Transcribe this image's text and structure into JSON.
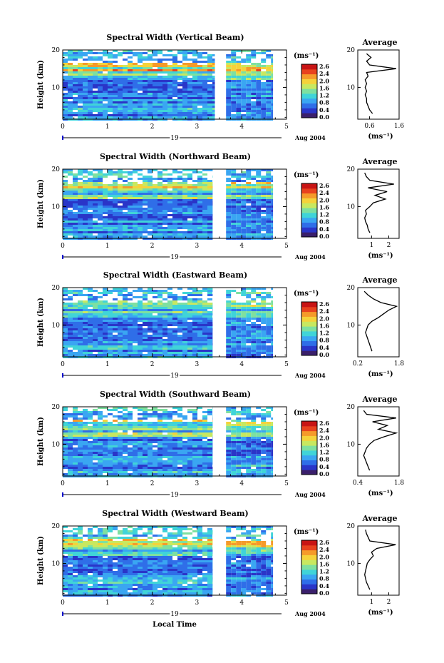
{
  "figure": {
    "xlabel": "Local Time",
    "date_left": "19",
    "date_right": "Aug 2004",
    "ylabel": "Height (km)",
    "unit": "(ms⁻¹)",
    "avg_title": "Average"
  },
  "colorbar": {
    "ticks": [
      "2.6",
      "2.4",
      "2.0",
      "1.6",
      "1.2",
      "0.8",
      "0.4",
      "0.0"
    ],
    "colors": [
      "#3a1f6b",
      "#2a35c8",
      "#2f6ee8",
      "#3aa6f2",
      "#40d4d8",
      "#7ee0a0",
      "#c8e860",
      "#f5d23a",
      "#f59a2a",
      "#e8421e",
      "#c81414"
    ]
  },
  "chart_data": [
    {
      "type": "heatmap",
      "title": "Spectral Width (Vertical Beam)",
      "xlabel": "Local Time",
      "ylabel": "Height (km)",
      "xlim": [
        0,
        5
      ],
      "ylim": [
        1.5,
        20
      ],
      "xticks": [
        0,
        1,
        2,
        3,
        4,
        5
      ],
      "yticks": [
        10,
        20
      ],
      "gap": [
        3.4,
        3.65
      ],
      "data_end": [
        3.4,
        4.7
      ],
      "avg": {
        "title": "Average",
        "xlabel": "(ms⁻¹)",
        "xlim": [
          0.2,
          1.6
        ],
        "xticks": [
          "0.6",
          "1.6"
        ],
        "heights": [
          3,
          4,
          5,
          6,
          7,
          8,
          9,
          10,
          11,
          12,
          13,
          14,
          15,
          16,
          17,
          18,
          19
        ],
        "values": [
          0.7,
          0.6,
          0.55,
          0.5,
          0.5,
          0.45,
          0.5,
          0.45,
          0.5,
          0.45,
          0.55,
          0.5,
          1.5,
          0.6,
          0.5,
          0.65,
          0.5
        ]
      }
    },
    {
      "type": "heatmap",
      "title": "Spectral Width (Northward Beam)",
      "xlabel": "Local Time",
      "ylabel": "Height (km)",
      "xlim": [
        0,
        5
      ],
      "ylim": [
        1.5,
        20
      ],
      "xticks": [
        0,
        1,
        2,
        3,
        4,
        5
      ],
      "yticks": [
        10,
        20
      ],
      "gap": [
        3.35,
        3.65
      ],
      "data_end": [
        3.35,
        4.7
      ],
      "avg": {
        "title": "Average",
        "xlabel": "(ms⁻¹)",
        "xlim": [
          0.2,
          2.6
        ],
        "xticks": [
          "1",
          "2"
        ],
        "heights": [
          3,
          4,
          5,
          6,
          7,
          8,
          9,
          10,
          11,
          12,
          13,
          14,
          15,
          16,
          17,
          18,
          19
        ],
        "values": [
          0.9,
          0.8,
          0.75,
          0.65,
          0.6,
          0.7,
          0.65,
          0.9,
          1.1,
          1.8,
          1.2,
          1.9,
          0.8,
          2.3,
          0.9,
          0.7,
          0.6
        ]
      }
    },
    {
      "type": "heatmap",
      "title": "Spectral Width (Eastward Beam)",
      "xlabel": "Local Time",
      "ylabel": "Height (km)",
      "xlim": [
        0,
        5
      ],
      "ylim": [
        1.5,
        20
      ],
      "xticks": [
        0,
        1,
        2,
        3,
        4,
        5
      ],
      "yticks": [
        10,
        20
      ],
      "gap": [
        3.35,
        3.65
      ],
      "data_end": [
        3.35,
        4.7
      ],
      "avg": {
        "title": "Average",
        "xlabel": "(ms⁻¹)",
        "xlim": [
          0.2,
          1.8
        ],
        "xticks": [
          "0.2",
          "1.8"
        ],
        "heights": [
          3,
          4,
          5,
          6,
          7,
          8,
          9,
          10,
          11,
          12,
          13,
          14,
          15,
          16,
          17,
          18,
          19
        ],
        "values": [
          0.75,
          0.7,
          0.65,
          0.6,
          0.55,
          0.5,
          0.55,
          0.6,
          0.75,
          1.0,
          1.2,
          1.4,
          1.7,
          1.1,
          0.8,
          0.6,
          0.45
        ]
      }
    },
    {
      "type": "heatmap",
      "title": "Spectral Width (Southward Beam)",
      "xlabel": "Local Time",
      "ylabel": "Height (km)",
      "xlim": [
        0,
        5
      ],
      "ylim": [
        1.5,
        20
      ],
      "xticks": [
        0,
        1,
        2,
        3,
        4,
        5
      ],
      "yticks": [
        10,
        20
      ],
      "gap": [
        3.35,
        3.65
      ],
      "data_end": [
        3.35,
        4.7
      ],
      "avg": {
        "title": "Average",
        "xlabel": "(ms⁻¹)",
        "xlim": [
          0.4,
          1.8
        ],
        "xticks": [
          "0.4",
          "1.8"
        ],
        "heights": [
          3,
          4,
          5,
          6,
          7,
          8,
          9,
          10,
          11,
          12,
          13,
          14,
          15,
          16,
          17,
          18,
          19
        ],
        "values": [
          0.8,
          0.75,
          0.7,
          0.65,
          0.6,
          0.65,
          0.7,
          0.8,
          0.95,
          1.3,
          1.7,
          1.1,
          1.4,
          0.9,
          1.7,
          0.7,
          0.6
        ]
      }
    },
    {
      "type": "heatmap",
      "title": "Spectral Width (Westward Beam)",
      "xlabel": "Local Time",
      "ylabel": "Height (km)",
      "xlim": [
        0,
        5
      ],
      "ylim": [
        1.5,
        20
      ],
      "xticks": [
        0,
        1,
        2,
        3,
        4,
        5
      ],
      "yticks": [
        10,
        20
      ],
      "gap": [
        3.35,
        3.65
      ],
      "data_end": [
        3.35,
        4.7
      ],
      "avg": {
        "title": "Average",
        "xlabel": "(ms⁻¹)",
        "xlim": [
          0.2,
          2.6
        ],
        "xticks": [
          "1",
          "2"
        ],
        "heights": [
          3,
          4,
          5,
          6,
          7,
          8,
          9,
          10,
          11,
          12,
          13,
          14,
          15,
          16,
          17,
          18,
          19
        ],
        "values": [
          0.9,
          0.8,
          0.7,
          0.65,
          0.6,
          0.65,
          0.7,
          0.75,
          0.9,
          1.1,
          1.0,
          1.3,
          2.4,
          0.9,
          0.8,
          0.7,
          0.65
        ]
      }
    }
  ]
}
